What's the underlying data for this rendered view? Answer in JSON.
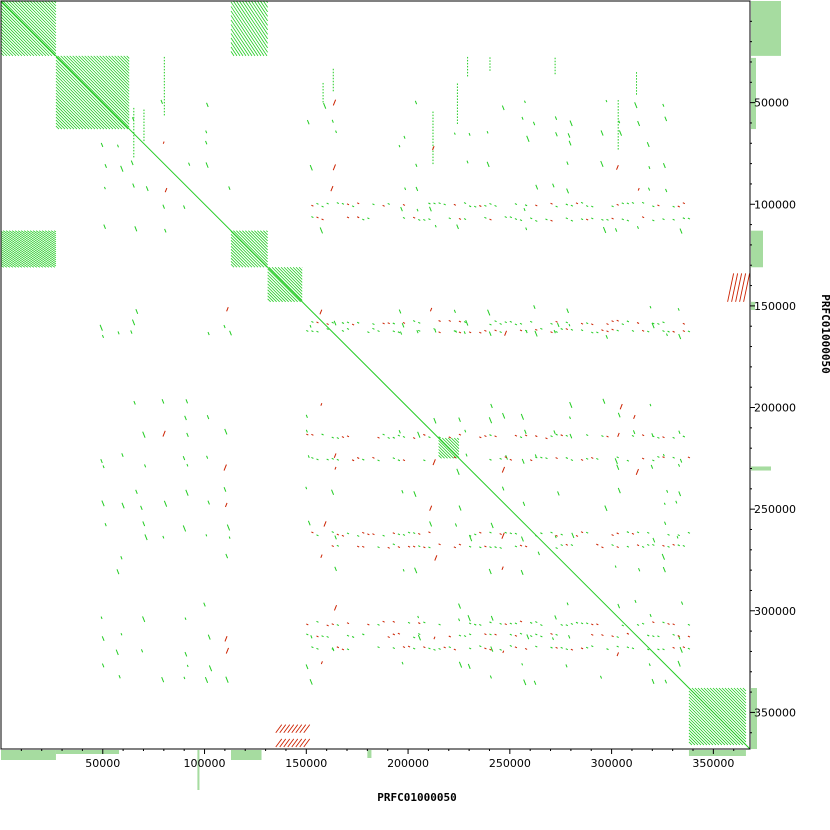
{
  "chart_data": {
    "type": "scatter",
    "title": "",
    "xlabel": "PRFC01000050",
    "ylabel": "PRFC01000050",
    "xlim": [
      0,
      368000
    ],
    "ylim": [
      0,
      368000
    ],
    "y_inverted": true,
    "grid": false,
    "legend": "none",
    "xticks": [
      50000,
      100000,
      150000,
      200000,
      250000,
      300000,
      350000
    ],
    "yticks": [
      50000,
      100000,
      150000,
      200000,
      250000,
      300000,
      350000
    ],
    "xtick_labels": [
      "50000",
      "100000",
      "150000",
      "200000",
      "250000",
      "300000",
      "350000"
    ],
    "ytick_labels": [
      "50000",
      "100000",
      "150000",
      "200000",
      "250000",
      "300000",
      "350000"
    ],
    "colors": {
      "forward": "#22cc22",
      "reverse": "#cc2200",
      "coverage": "#a6dca0",
      "frame": "#000000"
    },
    "diagonal": {
      "from": [
        0,
        0
      ],
      "to": [
        368000,
        368000
      ]
    },
    "forward_blocks": [
      {
        "x": [
          0,
          27000
        ],
        "y": [
          0,
          27000
        ]
      },
      {
        "x": [
          113000,
          131000
        ],
        "y": [
          0,
          27000
        ]
      },
      {
        "x": [
          27000,
          63000
        ],
        "y": [
          27000,
          63000
        ]
      },
      {
        "x": [
          0,
          27000
        ],
        "y": [
          113000,
          131000
        ]
      },
      {
        "x": [
          113000,
          131000
        ],
        "y": [
          113000,
          131000
        ]
      },
      {
        "x": [
          131000,
          148000
        ],
        "y": [
          131000,
          148000
        ]
      },
      {
        "x": [
          215000,
          225000
        ],
        "y": [
          215000,
          225000
        ]
      },
      {
        "x": [
          338000,
          366000
        ],
        "y": [
          338000,
          366000
        ]
      }
    ],
    "reverse_blocks": [
      {
        "x": [
          357000,
          366000
        ],
        "y": [
          134000,
          148000
        ]
      },
      {
        "x": [
          135000,
          150000
        ],
        "y": [
          356000,
          360000
        ]
      },
      {
        "x": [
          135000,
          150000
        ],
        "y": [
          363000,
          367000
        ]
      }
    ],
    "repeat_positions": [
      50000,
      58000,
      65000,
      70000,
      80000,
      91000,
      101000,
      111000,
      151000,
      158000,
      163000,
      197000,
      204000,
      212000,
      224000,
      229000,
      240000,
      247000,
      257000,
      263000,
      272000,
      279000,
      296000,
      303000,
      312000,
      319000,
      326000,
      333000
    ],
    "reverse_columns": [
      78000,
      108000,
      112000,
      159000,
      163000,
      210000,
      248000,
      303000,
      312000
    ],
    "dense_rows": [
      100000,
      107000,
      158000,
      162000,
      214000,
      225000,
      262000,
      268000,
      306000,
      312000,
      318000
    ]
  }
}
